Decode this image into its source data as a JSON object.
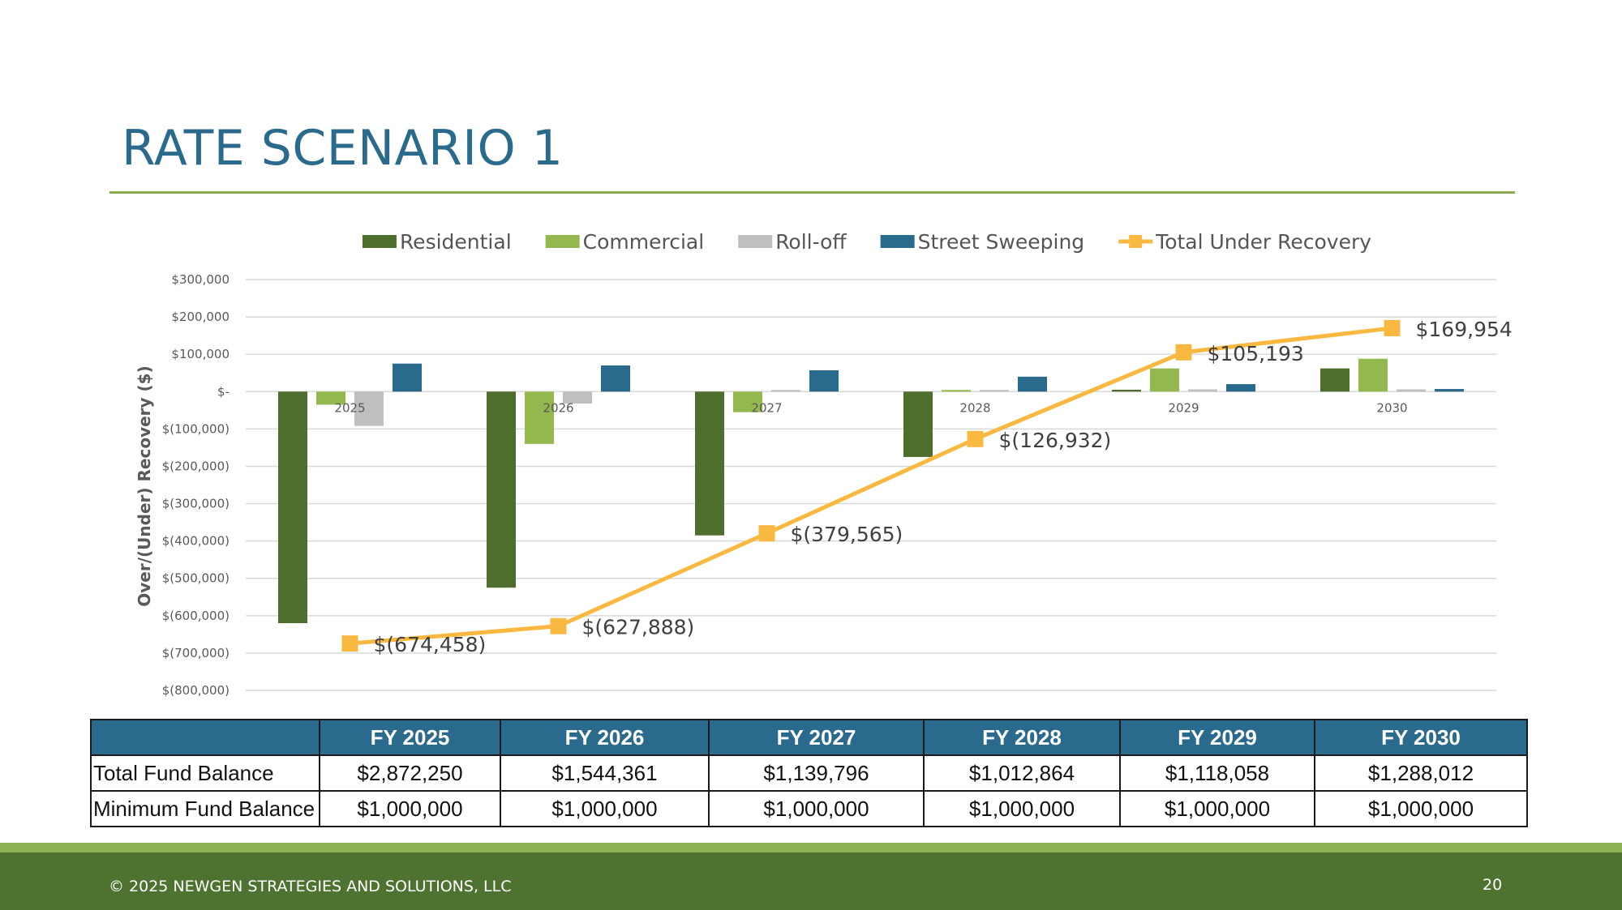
{
  "slide": {
    "title": "RATE SCENARIO 1",
    "footer_copyright": "© 2025 NEWGEN STRATEGIES AND SOLUTIONS, LLC",
    "page_number": "20"
  },
  "colors": {
    "title": "#2a6a8c",
    "rule": "#8aab4a",
    "residential": "#4e6e2e",
    "commercial": "#93b84e",
    "rolloff": "#bfbfbf",
    "street_sweeping": "#2a6a8c",
    "total_line": "#f9b940",
    "table_header": "#2a6a8c",
    "footer": "#4e7330",
    "footer_stripe": "#8cb254"
  },
  "chart_data": {
    "type": "bar",
    "ylabel": "Over/(Under) Recovery ($)",
    "xlabel": "",
    "ylim": [
      -800000,
      300000
    ],
    "grid": true,
    "legend_position": "top",
    "categories": [
      "2025",
      "2026",
      "2027",
      "2028",
      "2029",
      "2030"
    ],
    "y_ticks": [
      {
        "value": 300000,
        "label": "$300,000"
      },
      {
        "value": 200000,
        "label": "$200,000"
      },
      {
        "value": 100000,
        "label": "$100,000"
      },
      {
        "value": 0,
        "label": "$-"
      },
      {
        "value": -100000,
        "label": "$(100,000)"
      },
      {
        "value": -200000,
        "label": "$(200,000)"
      },
      {
        "value": -300000,
        "label": "$(300,000)"
      },
      {
        "value": -400000,
        "label": "$(400,000)"
      },
      {
        "value": -500000,
        "label": "$(500,000)"
      },
      {
        "value": -600000,
        "label": "$(600,000)"
      },
      {
        "value": -700000,
        "label": "$(700,000)"
      },
      {
        "value": -800000,
        "label": "$(800,000)"
      }
    ],
    "series": [
      {
        "name": "Residential",
        "kind": "bar",
        "color": "#4e6e2e",
        "values": [
          -620000,
          -525000,
          -385000,
          -175000,
          5000,
          62000
        ]
      },
      {
        "name": "Commercial",
        "kind": "bar",
        "color": "#93b84e",
        "values": [
          -35000,
          -140000,
          -55000,
          0,
          62000,
          88000
        ]
      },
      {
        "name": "Roll-off",
        "kind": "bar",
        "color": "#bfbfbf",
        "values": [
          -92000,
          -32000,
          2000,
          3000,
          6000,
          6000
        ]
      },
      {
        "name": "Street Sweeping",
        "kind": "bar",
        "color": "#2a6a8c",
        "values": [
          75000,
          70000,
          57000,
          40000,
          20000,
          7000
        ]
      },
      {
        "name": "Total Under Recovery",
        "kind": "line",
        "color": "#f9b940",
        "values": [
          -674458,
          -627888,
          -379565,
          -126932,
          105193,
          169954
        ],
        "labels": [
          "$(674,458)",
          "$(627,888)",
          "$(379,565)",
          "$(126,932)",
          "$105,193",
          "$169,954"
        ]
      }
    ]
  },
  "table": {
    "headers": [
      "",
      "FY 2025",
      "FY 2026",
      "FY 2027",
      "FY 2028",
      "FY 2029",
      "FY 2030"
    ],
    "rows": [
      {
        "label": "Total Fund Balance",
        "values": [
          "$2,872,250",
          "$1,544,361",
          "$1,139,796",
          "$1,012,864",
          "$1,118,058",
          "$1,288,012"
        ]
      },
      {
        "label": "Minimum Fund Balance",
        "values": [
          "$1,000,000",
          "$1,000,000",
          "$1,000,000",
          "$1,000,000",
          "$1,000,000",
          "$1,000,000"
        ]
      }
    ]
  }
}
